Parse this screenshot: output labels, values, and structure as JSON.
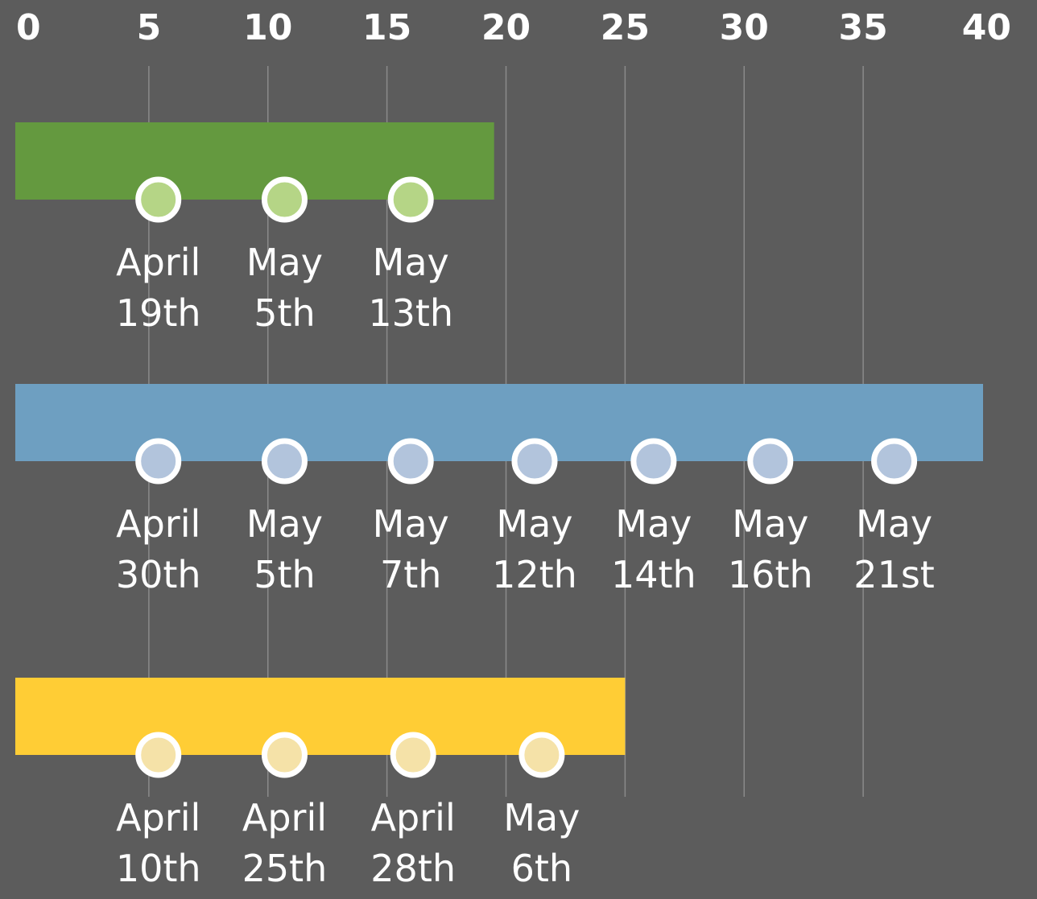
{
  "chart_data": {
    "type": "timeline-bar",
    "xlim": [
      0,
      40
    ],
    "xticks": [
      0,
      5,
      10,
      15,
      20,
      25,
      30,
      35,
      40
    ],
    "grid": true,
    "series": [
      {
        "color": "#64993f",
        "dot_color": "#b5d586",
        "value": 19.5,
        "events": [
          {
            "x": 5.4,
            "label": [
              "April",
              "19th"
            ]
          },
          {
            "x": 10.7,
            "label": [
              "May",
              "5th"
            ]
          },
          {
            "x": 16,
            "label": [
              "May",
              "13th"
            ]
          }
        ]
      },
      {
        "color": "#6e9fc1",
        "dot_color": "#b2c4dc",
        "value": 40,
        "events": [
          {
            "x": 5.4,
            "label": [
              "April",
              "30th"
            ]
          },
          {
            "x": 10.7,
            "label": [
              "May",
              "5th"
            ]
          },
          {
            "x": 16,
            "label": [
              "May",
              "7th"
            ]
          },
          {
            "x": 21.2,
            "label": [
              "May",
              "12th"
            ]
          },
          {
            "x": 26.2,
            "label": [
              "May",
              "14th"
            ]
          },
          {
            "x": 31.1,
            "label": [
              "May",
              "16th"
            ]
          },
          {
            "x": 36.3,
            "label": [
              "May",
              "21st"
            ]
          }
        ]
      },
      {
        "color": "#ffcd35",
        "dot_color": "#f5e2a8",
        "value": 25,
        "events": [
          {
            "x": 5.4,
            "label": [
              "April",
              "10th"
            ]
          },
          {
            "x": 10.7,
            "label": [
              "April",
              "25th"
            ]
          },
          {
            "x": 16.1,
            "label": [
              "April",
              "28th"
            ]
          },
          {
            "x": 21.5,
            "label": [
              "May",
              "6th"
            ]
          }
        ]
      }
    ]
  }
}
